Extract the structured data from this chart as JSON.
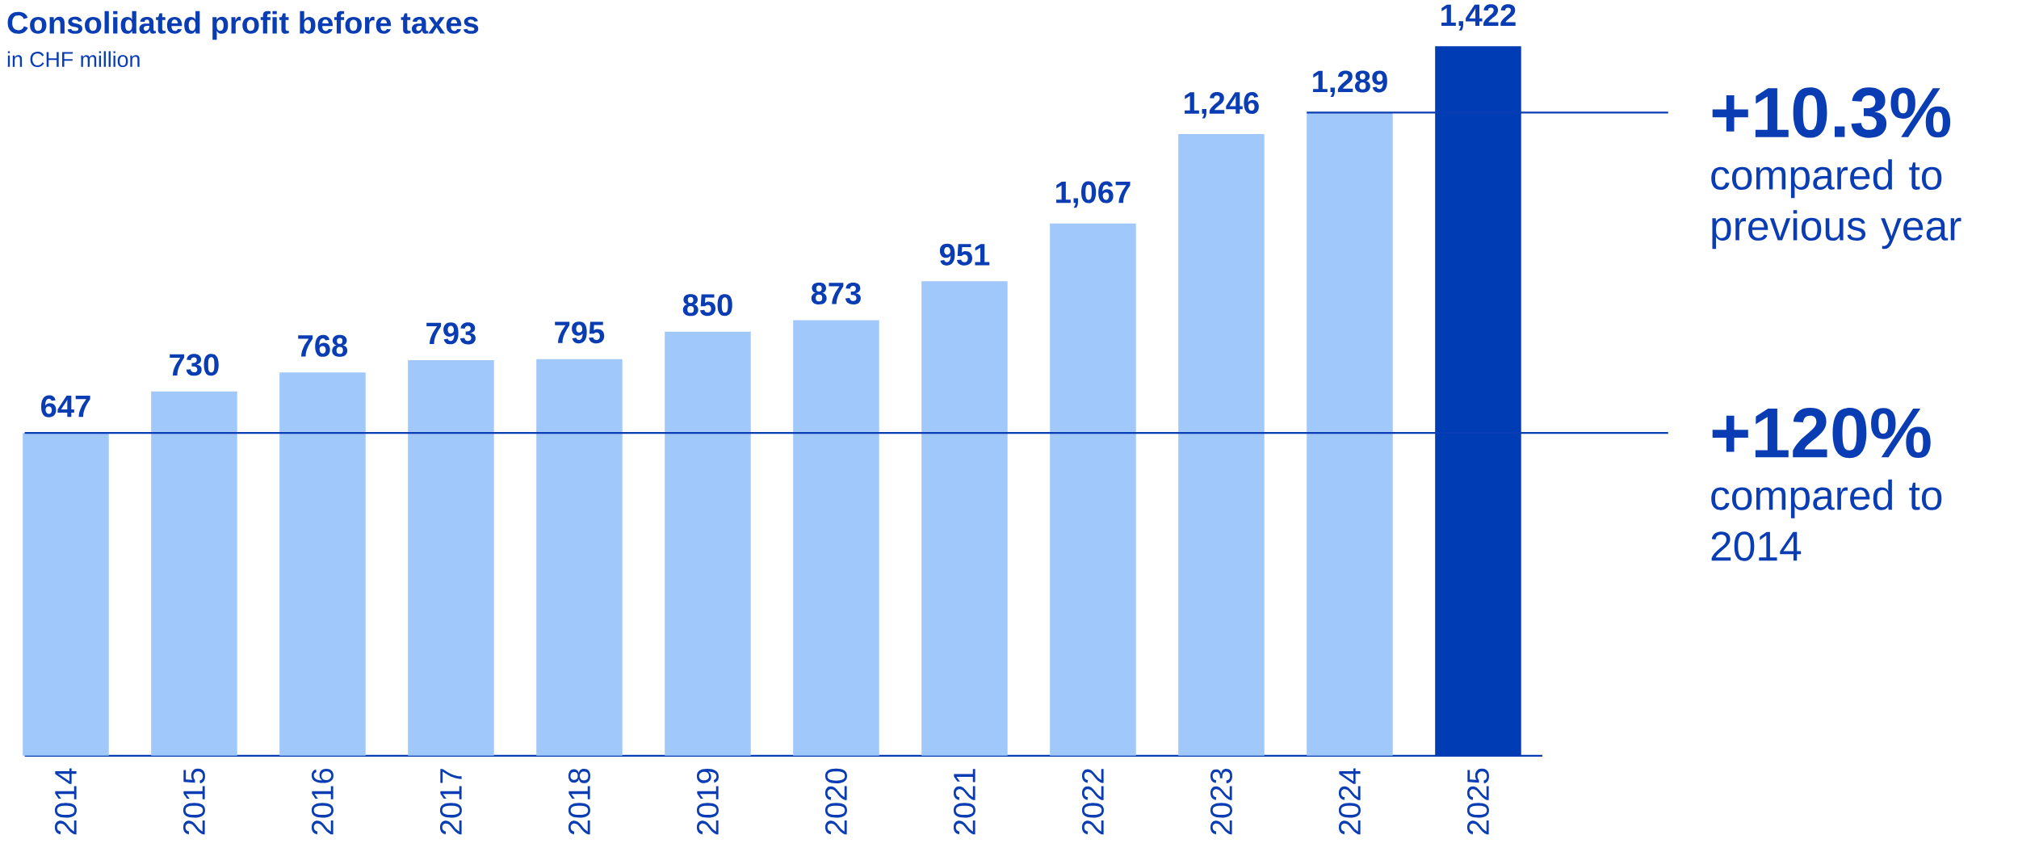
{
  "chart_data": {
    "type": "bar",
    "title": "Consolidated profit before taxes",
    "subtitle": "in CHF million",
    "categories": [
      "2014",
      "2015",
      "2016",
      "2017",
      "2018",
      "2019",
      "2020",
      "2021",
      "2022",
      "2023",
      "2024",
      "2025"
    ],
    "values": [
      647,
      730,
      768,
      793,
      795,
      850,
      873,
      951,
      1067,
      1246,
      1289,
      1422
    ],
    "value_labels": [
      "647",
      "730",
      "768",
      "793",
      "795",
      "850",
      "873",
      "951",
      "1,067",
      "1,246",
      "1,289",
      "1,422"
    ],
    "colors": [
      "#a0c8fa",
      "#a0c8fa",
      "#a0c8fa",
      "#a0c8fa",
      "#a0c8fa",
      "#a0c8fa",
      "#a0c8fa",
      "#a0c8fa",
      "#a0c8fa",
      "#a0c8fa",
      "#a0c8fa",
      "#003cb4"
    ],
    "ref_lines": [
      {
        "axis": "y",
        "value": 1289,
        "color": "#0a3cb4"
      },
      {
        "axis": "y",
        "value": 647,
        "color": "#0a3cb4"
      }
    ],
    "annotations": [
      "+10.3%",
      "compared to previous year",
      "+120%",
      "compared to 2014"
    ]
  }
}
